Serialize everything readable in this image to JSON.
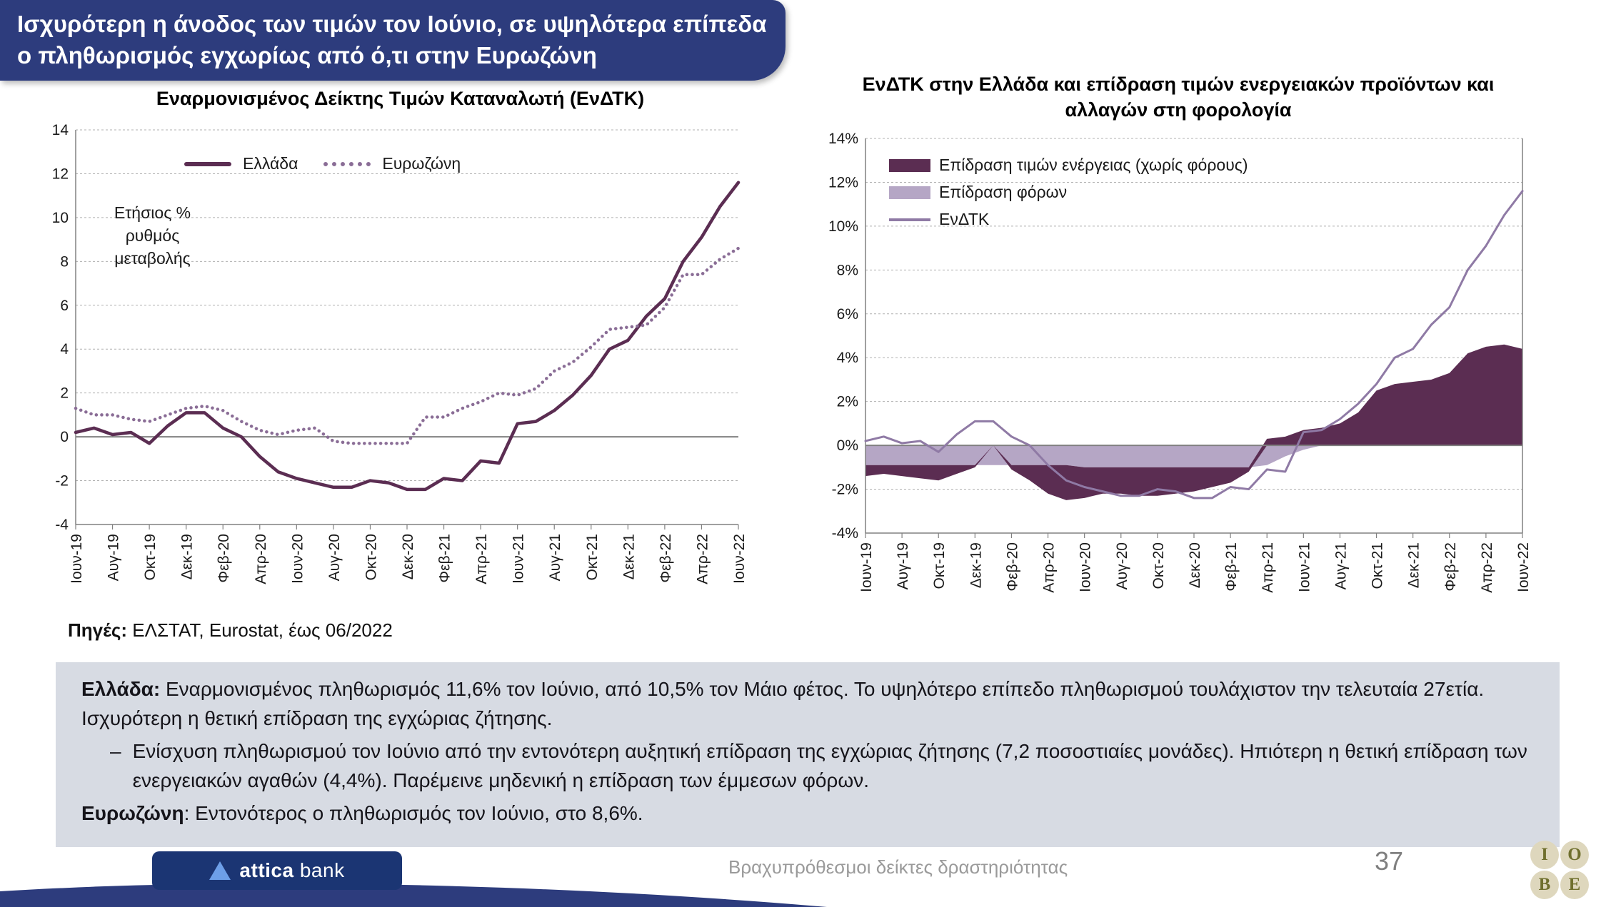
{
  "header": {
    "title": "Ισχυρότερη η άνοδος των τιμών τον Ιούνιο, σε υψηλότερα επίπεδα ο πληθωρισμός εγχωρίως από ό,τι στην Ευρωζώνη"
  },
  "source": {
    "label": "Πηγές:",
    "text": "ΕΛΣΤΑΤ, Eurostat, έως 06/2022"
  },
  "notes": {
    "p1_bold": "Ελλάδα:",
    "p1_text": "Εναρμονισμένος πληθωρισμός 11,6% τον Ιούνιο, από 10,5% τον Μάιο φέτος. Το υψηλότερο επίπεδο πληθωρισμού τουλάχιστον την τελευταία 27ετία. Ισχυρότερη η θετική επίδραση της εγχώριας ζήτησης.",
    "bullet_dash": "–",
    "bullet_text": "Ενίσχυση πληθωρισμού τον Ιούνιο από την εντονότερη αυξητική επίδραση της εγχώριας ζήτησης (7,2 ποσοστιαίες μονάδες). Ηπιότερη η θετική επίδραση των ενεργειακών αγαθών (4,4%). Παρέμεινε μηδενική η επίδραση των έμμεσων φόρων.",
    "p3_bold": "Ευρωζώνη",
    "p3_text": ": Εντονότερος ο πληθωρισμός τον Ιούνιο, στο 8,6%."
  },
  "footer": {
    "center": "Βραχυπρόθεσμοι δείκτες δραστηριότητας",
    "page": "37",
    "brand_bold": "attica",
    "brand_light": "bank",
    "iobe": [
      "I",
      "O",
      "B",
      "E"
    ],
    "banner_color": "#2d3c7d"
  },
  "chart_data": [
    {
      "type": "line",
      "title": "Εναρμονισμένος Δείκτης Τιμών Καταναλωτή (ΕνΔΤΚ)",
      "annotation": "Ετήσιος % ρυθμός μεταβολής",
      "ylim": [
        -4,
        14
      ],
      "y_ticks": [
        14,
        12,
        10,
        8,
        6,
        4,
        2,
        0,
        -2,
        -4
      ],
      "grid": "dashed",
      "legend_position": "top-inside",
      "x_tick_every": 2,
      "x_ticks": [
        "Ιουν-19",
        "Αυγ-19",
        "Οκτ-19",
        "Δεκ-19",
        "Φεβ-20",
        "Απρ-20",
        "Ιουν-20",
        "Αυγ-20",
        "Οκτ-20",
        "Δεκ-20",
        "Φεβ-21",
        "Απρ-21",
        "Ιουν-21",
        "Αυγ-21",
        "Οκτ-21",
        "Δεκ-21",
        "Φεβ-22",
        "Απρ-22",
        "Ιουν-22"
      ],
      "series": [
        {
          "name": "Ελλάδα",
          "kind": "line",
          "style": "solid",
          "color": "#5b2d52",
          "width": 4.5,
          "values": [
            0.2,
            0.4,
            0.1,
            0.2,
            -0.3,
            0.5,
            1.1,
            1.1,
            0.4,
            0.0,
            -0.9,
            -1.6,
            -1.9,
            -2.1,
            -2.3,
            -2.3,
            -2.0,
            -2.1,
            -2.4,
            -2.4,
            -1.9,
            -2.0,
            -1.1,
            -1.2,
            0.6,
            0.7,
            1.2,
            1.9,
            2.8,
            4.0,
            4.4,
            5.5,
            6.3,
            8.0,
            9.1,
            10.5,
            11.6
          ]
        },
        {
          "name": "Ευρωζώνη",
          "kind": "line",
          "style": "dotted",
          "color": "#8a6d96",
          "width": 4.5,
          "values": [
            1.3,
            1.0,
            1.0,
            0.8,
            0.7,
            1.0,
            1.3,
            1.4,
            1.2,
            0.7,
            0.3,
            0.1,
            0.3,
            0.4,
            -0.2,
            -0.3,
            -0.3,
            -0.3,
            -0.3,
            0.9,
            0.9,
            1.3,
            1.6,
            2.0,
            1.9,
            2.2,
            3.0,
            3.4,
            4.1,
            4.9,
            5.0,
            5.1,
            5.9,
            7.4,
            7.4,
            8.1,
            8.6
          ]
        }
      ]
    },
    {
      "type": "area+line",
      "title": "ΕνΔΤΚ στην Ελλάδα και επίδραση τιμών ενεργειακών προϊόντων και αλλαγών στη φορολογία",
      "ylim": [
        -4,
        14
      ],
      "y_ticks": [
        14,
        12,
        10,
        8,
        6,
        4,
        2,
        0,
        -2,
        -4
      ],
      "y_suffix": "%",
      "grid": "dashed",
      "legend_position": "top-left-inside",
      "x_tick_every": 2,
      "x_ticks": [
        "Ιουν-19",
        "Αυγ-19",
        "Οκτ-19",
        "Δεκ-19",
        "Φεβ-20",
        "Απρ-20",
        "Ιουν-20",
        "Αυγ-20",
        "Οκτ-20",
        "Δεκ-20",
        "Φεβ-21",
        "Απρ-21",
        "Ιουν-21",
        "Αυγ-21",
        "Οκτ-21",
        "Δεκ-21",
        "Φεβ-22",
        "Απρ-22",
        "Ιουν-22"
      ],
      "series": [
        {
          "name": "Επίδραση τιμών ενέργειας (χωρίς φόρους)",
          "kind": "area",
          "color": "#5b2d52",
          "values": [
            -0.5,
            -0.4,
            -0.5,
            -0.6,
            -0.7,
            -0.4,
            -0.1,
            0.0,
            -0.2,
            -0.7,
            -1.3,
            -1.6,
            -1.4,
            -1.2,
            -1.2,
            -1.3,
            -1.3,
            -1.2,
            -1.1,
            -0.9,
            -0.7,
            -0.2,
            0.3,
            0.4,
            0.7,
            0.8,
            1.0,
            1.5,
            2.5,
            2.8,
            2.9,
            3.0,
            3.3,
            4.2,
            4.5,
            4.6,
            4.4
          ]
        },
        {
          "name": "Επίδραση φόρων",
          "kind": "area",
          "color": "#b5a6c5",
          "values": [
            -0.9,
            -0.9,
            -0.9,
            -0.9,
            -0.9,
            -0.9,
            -0.9,
            -0.9,
            -0.9,
            -0.9,
            -0.9,
            -0.9,
            -1.0,
            -1.0,
            -1.0,
            -1.0,
            -1.0,
            -1.0,
            -1.0,
            -1.0,
            -1.0,
            -1.0,
            -0.9,
            -0.5,
            -0.2,
            0,
            0,
            0,
            0,
            0,
            0,
            0,
            0,
            0,
            0,
            0,
            0
          ]
        },
        {
          "name": "ΕνΔΤΚ",
          "kind": "line",
          "style": "solid",
          "color": "#8f7aa5",
          "width": 3,
          "values": [
            0.2,
            0.4,
            0.1,
            0.2,
            -0.3,
            0.5,
            1.1,
            1.1,
            0.4,
            0.0,
            -0.9,
            -1.6,
            -1.9,
            -2.1,
            -2.3,
            -2.3,
            -2.0,
            -2.1,
            -2.4,
            -2.4,
            -1.9,
            -2.0,
            -1.1,
            -1.2,
            0.6,
            0.7,
            1.2,
            1.9,
            2.8,
            4.0,
            4.4,
            5.5,
            6.3,
            8.0,
            9.1,
            10.5,
            11.6
          ]
        }
      ]
    }
  ]
}
